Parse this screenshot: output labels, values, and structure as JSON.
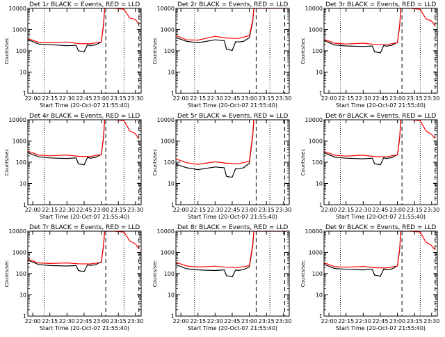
{
  "figure": {
    "rows": 3,
    "cols": 3,
    "ylabel": "Counts/sec",
    "xlabel": "Start Time (20-Oct-07 21:55:40)"
  },
  "chart_data": [
    {
      "type": "line",
      "title": "Det 1r BLACK = Events, RED = LLD",
      "xlabel": "Start Time (20-Oct-07 21:55:40)",
      "ylabel": "Counts/sec",
      "yscale": "log",
      "ylim": [
        1,
        10000
      ],
      "xlim": [
        "21:55:40",
        "23:35:00"
      ],
      "xticks": [
        "22:00",
        "22:15",
        "22:30",
        "22:45",
        "23:00",
        "23:15",
        "23:30"
      ],
      "yticks": [
        "1",
        "10",
        "100",
        "1000",
        "10000"
      ],
      "markers": [
        {
          "time": "22:10",
          "style": "dotted"
        },
        {
          "time": "23:04",
          "style": "dashed"
        },
        {
          "time": "23:20",
          "style": "dotted"
        },
        {
          "time": "23:33",
          "style": "dashed"
        }
      ],
      "series": [
        {
          "name": "Events",
          "color": "#000000",
          "x": [
            "21:56",
            "22:05",
            "22:15",
            "22:30",
            "22:38",
            "22:40",
            "22:43",
            "22:45",
            "22:48",
            "22:50",
            "22:55",
            "23:00",
            "23:02",
            "23:03"
          ],
          "values": [
            330,
            210,
            195,
            175,
            180,
            100,
            95,
            90,
            195,
            175,
            190,
            260,
            1500,
            10000
          ]
        },
        {
          "name": "LLD",
          "color": "#ff0000",
          "x": [
            "21:56",
            "22:05",
            "22:15",
            "22:30",
            "22:40",
            "22:50",
            "23:00",
            "23:02",
            "23:03",
            "23:12",
            "23:20",
            "23:25",
            "23:30",
            "23:33"
          ],
          "values": [
            370,
            255,
            240,
            260,
            220,
            215,
            260,
            1700,
            10000,
            10000,
            9000,
            3500,
            3000,
            1800
          ]
        }
      ]
    },
    {
      "type": "line",
      "title": "Det 2r BLACK = Events, RED = LLD",
      "xlabel": "Start Time (20-Oct-07 21:55:40)",
      "ylabel": "Counts/sec",
      "yscale": "log",
      "ylim": [
        1,
        10000
      ],
      "xlim": [
        "21:55:40",
        "23:35:00"
      ],
      "xticks": [
        "22:00",
        "22:15",
        "22:30",
        "22:45",
        "23:00",
        "23:15",
        "23:30"
      ],
      "yticks": [
        "1",
        "10",
        "100",
        "1000",
        "10000"
      ],
      "markers": [
        {
          "time": "22:12",
          "style": "dotted"
        },
        {
          "time": "23:06",
          "style": "dashed"
        },
        {
          "time": "23:18",
          "style": "dotted"
        },
        {
          "time": "23:31",
          "style": "dashed"
        }
      ],
      "series": [
        {
          "name": "Events",
          "color": "#000000",
          "x": [
            "21:56",
            "22:05",
            "22:15",
            "22:30",
            "22:38",
            "22:40",
            "22:43",
            "22:45",
            "22:48",
            "22:50",
            "22:55",
            "23:00",
            "23:03",
            "23:04"
          ],
          "values": [
            420,
            280,
            240,
            330,
            300,
            120,
            110,
            105,
            270,
            260,
            280,
            420,
            2400,
            10000
          ]
        },
        {
          "name": "LLD",
          "color": "#ff0000",
          "x": [
            "21:56",
            "22:05",
            "22:15",
            "22:30",
            "22:40",
            "22:50",
            "23:00",
            "23:03",
            "23:04",
            "23:33"
          ],
          "values": [
            520,
            330,
            320,
            480,
            400,
            380,
            520,
            2800,
            10000,
            10000
          ]
        }
      ]
    },
    {
      "type": "line",
      "title": "Det 3r BLACK = Events, RED = LLD",
      "xlabel": "Start Time (20-Oct-07 21:55:40)",
      "ylabel": "Counts/sec",
      "yscale": "log",
      "ylim": [
        1,
        10000
      ],
      "xlim": [
        "21:55:40",
        "23:35:00"
      ],
      "xticks": [
        "22:00",
        "22:15",
        "22:30",
        "22:45",
        "23:00",
        "23:15",
        "23:30"
      ],
      "yticks": [
        "1",
        "10",
        "100",
        "1000",
        "10000"
      ],
      "markers": [
        {
          "time": "22:10",
          "style": "dotted"
        },
        {
          "time": "23:04",
          "style": "dashed"
        },
        {
          "time": "23:20",
          "style": "dotted"
        },
        {
          "time": "23:33",
          "style": "dashed"
        }
      ],
      "series": [
        {
          "name": "Events",
          "color": "#000000",
          "x": [
            "21:56",
            "22:05",
            "22:15",
            "22:30",
            "22:38",
            "22:40",
            "22:43",
            "22:45",
            "22:48",
            "22:50",
            "22:55",
            "23:00",
            "23:02",
            "23:03"
          ],
          "values": [
            300,
            190,
            170,
            160,
            170,
            90,
            85,
            80,
            180,
            165,
            180,
            250,
            1400,
            10000
          ]
        },
        {
          "name": "LLD",
          "color": "#ff0000",
          "x": [
            "21:56",
            "22:05",
            "22:15",
            "22:30",
            "22:40",
            "22:50",
            "23:00",
            "23:02",
            "23:03",
            "23:12",
            "23:20",
            "23:25",
            "23:30",
            "23:33"
          ],
          "values": [
            340,
            230,
            210,
            230,
            200,
            195,
            240,
            1600,
            10000,
            10000,
            9000,
            3200,
            2500,
            1500
          ]
        }
      ]
    },
    {
      "type": "line",
      "title": "Det 4r BLACK = Events, RED = LLD",
      "xlabel": "Start Time (20-Oct-07 21:55:40)",
      "ylabel": "Counts/sec",
      "yscale": "log",
      "ylim": [
        1,
        10000
      ],
      "xlim": [
        "21:55:40",
        "23:35:00"
      ],
      "xticks": [
        "22:00",
        "22:15",
        "22:30",
        "22:45",
        "23:00",
        "23:15",
        "23:30"
      ],
      "yticks": [
        "1",
        "10",
        "100",
        "1000",
        "10000"
      ],
      "markers": [
        {
          "time": "22:10",
          "style": "dotted"
        },
        {
          "time": "23:04",
          "style": "dashed"
        },
        {
          "time": "23:20",
          "style": "dotted"
        },
        {
          "time": "23:33",
          "style": "dashed"
        }
      ],
      "series": [
        {
          "name": "Events",
          "color": "#000000",
          "x": [
            "21:56",
            "22:05",
            "22:15",
            "22:30",
            "22:38",
            "22:40",
            "22:43",
            "22:45",
            "22:48",
            "22:50",
            "22:55",
            "23:00",
            "23:02",
            "23:03"
          ],
          "values": [
            280,
            180,
            160,
            150,
            160,
            85,
            80,
            75,
            170,
            155,
            170,
            230,
            1300,
            10000
          ]
        },
        {
          "name": "LLD",
          "color": "#ff0000",
          "x": [
            "21:56",
            "22:05",
            "22:15",
            "22:30",
            "22:40",
            "22:50",
            "23:00",
            "23:02",
            "23:03",
            "23:12",
            "23:20",
            "23:25",
            "23:30",
            "23:33"
          ],
          "values": [
            330,
            220,
            200,
            220,
            190,
            185,
            230,
            1500,
            10000,
            10000,
            9000,
            3000,
            2200,
            1200
          ]
        }
      ]
    },
    {
      "type": "line",
      "title": "Det 5r BLACK = Events, RED = LLD",
      "xlabel": "Start Time (20-Oct-07 21:55:40)",
      "ylabel": "Counts/sec",
      "yscale": "log",
      "ylim": [
        1,
        10000
      ],
      "xlim": [
        "21:55:40",
        "23:35:00"
      ],
      "xticks": [
        "22:00",
        "22:15",
        "22:30",
        "22:45",
        "23:00",
        "23:15",
        "23:30"
      ],
      "yticks": [
        "1",
        "10",
        "100",
        "1000",
        "10000"
      ],
      "markers": [
        {
          "time": "22:12",
          "style": "dotted"
        },
        {
          "time": "23:06",
          "style": "dashed"
        },
        {
          "time": "23:18",
          "style": "dotted"
        },
        {
          "time": "23:31",
          "style": "dashed"
        }
      ],
      "series": [
        {
          "name": "Events",
          "color": "#000000",
          "x": [
            "21:56",
            "22:05",
            "22:15",
            "22:30",
            "22:38",
            "22:40",
            "22:43",
            "22:45",
            "22:48",
            "22:50",
            "22:55",
            "23:00",
            "23:03",
            "23:04"
          ],
          "values": [
            80,
            55,
            45,
            60,
            55,
            22,
            20,
            20,
            50,
            48,
            55,
            90,
            1800,
            10000
          ]
        },
        {
          "name": "LLD",
          "color": "#ff0000",
          "x": [
            "21:56",
            "22:05",
            "22:15",
            "22:30",
            "22:40",
            "22:50",
            "23:00",
            "23:03",
            "23:04",
            "23:33"
          ],
          "values": [
            140,
            95,
            80,
            105,
            90,
            85,
            110,
            2200,
            10000,
            10000
          ]
        }
      ]
    },
    {
      "type": "line",
      "title": "Det 6r BLACK = Events, RED = LLD",
      "xlabel": "Start Time (20-Oct-07 21:55:40)",
      "ylabel": "Counts/sec",
      "yscale": "log",
      "ylim": [
        1,
        10000
      ],
      "xlim": [
        "21:55:40",
        "23:35:00"
      ],
      "xticks": [
        "22:00",
        "22:15",
        "22:30",
        "22:45",
        "23:00",
        "23:15",
        "23:30"
      ],
      "yticks": [
        "1",
        "10",
        "100",
        "1000",
        "10000"
      ],
      "markers": [
        {
          "time": "22:10",
          "style": "dotted"
        },
        {
          "time": "23:04",
          "style": "dashed"
        },
        {
          "time": "23:20",
          "style": "dotted"
        },
        {
          "time": "23:33",
          "style": "dashed"
        }
      ],
      "series": [
        {
          "name": "Events",
          "color": "#000000",
          "x": [
            "21:56",
            "22:05",
            "22:15",
            "22:30",
            "22:38",
            "22:40",
            "22:43",
            "22:45",
            "22:48",
            "22:50",
            "22:55",
            "23:00",
            "23:02",
            "23:03"
          ],
          "values": [
            280,
            175,
            155,
            145,
            155,
            85,
            80,
            75,
            165,
            150,
            165,
            230,
            1300,
            10000
          ]
        },
        {
          "name": "LLD",
          "color": "#ff0000",
          "x": [
            "21:56",
            "22:05",
            "22:15",
            "22:30",
            "22:40",
            "22:50",
            "23:00",
            "23:02",
            "23:03",
            "23:12",
            "23:20",
            "23:25",
            "23:30",
            "23:33"
          ],
          "values": [
            320,
            215,
            195,
            215,
            185,
            180,
            225,
            1500,
            10000,
            10000,
            9000,
            3000,
            2000,
            1300
          ]
        }
      ]
    },
    {
      "type": "line",
      "title": "Det 7r BLACK = Events, RED = LLD",
      "xlabel": "Start Time (20-Oct-07 21:55:40)",
      "ylabel": "Counts/sec",
      "yscale": "log",
      "ylim": [
        1,
        10000
      ],
      "xlim": [
        "21:55:40",
        "23:35:00"
      ],
      "xticks": [
        "22:00",
        "22:15",
        "22:30",
        "22:45",
        "23:00",
        "23:15",
        "23:30"
      ],
      "yticks": [
        "1",
        "10",
        "100",
        "1000",
        "10000"
      ],
      "markers": [
        {
          "time": "22:10",
          "style": "dotted"
        },
        {
          "time": "23:04",
          "style": "dashed"
        },
        {
          "time": "23:20",
          "style": "dotted"
        },
        {
          "time": "23:33",
          "style": "dashed"
        }
      ],
      "series": [
        {
          "name": "Events",
          "color": "#000000",
          "x": [
            "21:56",
            "22:05",
            "22:15",
            "22:30",
            "22:38",
            "22:40",
            "22:43",
            "22:45",
            "22:48",
            "22:50",
            "22:55",
            "23:00",
            "23:02",
            "23:03"
          ],
          "values": [
            420,
            270,
            240,
            230,
            240,
            140,
            130,
            125,
            260,
            245,
            260,
            360,
            1900,
            10000
          ]
        },
        {
          "name": "LLD",
          "color": "#ff0000",
          "x": [
            "21:56",
            "22:05",
            "22:15",
            "22:30",
            "22:40",
            "22:50",
            "23:00",
            "23:02",
            "23:03",
            "23:12",
            "23:20",
            "23:25",
            "23:30",
            "23:33"
          ],
          "values": [
            470,
            320,
            300,
            320,
            290,
            285,
            340,
            2100,
            10000,
            10000,
            9000,
            3500,
            2500,
            1500
          ]
        }
      ]
    },
    {
      "type": "line",
      "title": "Det 8r BLACK = Events, RED = LLD",
      "xlabel": "Start Time (20-Oct-07 21:55:40)",
      "ylabel": "Counts/sec",
      "yscale": "log",
      "ylim": [
        1,
        10000
      ],
      "xlim": [
        "21:55:40",
        "23:35:00"
      ],
      "xticks": [
        "22:00",
        "22:15",
        "22:30",
        "22:45",
        "23:00",
        "23:15",
        "23:30"
      ],
      "yticks": [
        "1",
        "10",
        "100",
        "1000",
        "10000"
      ],
      "markers": [
        {
          "time": "22:12",
          "style": "dotted"
        },
        {
          "time": "23:06",
          "style": "dashed"
        },
        {
          "time": "23:18",
          "style": "dotted"
        },
        {
          "time": "23:31",
          "style": "dashed"
        }
      ],
      "series": [
        {
          "name": "Events",
          "color": "#000000",
          "x": [
            "21:56",
            "22:05",
            "22:15",
            "22:30",
            "22:38",
            "22:40",
            "22:43",
            "22:45",
            "22:48",
            "22:50",
            "22:55",
            "23:00",
            "23:03",
            "23:04"
          ],
          "values": [
            260,
            170,
            150,
            140,
            150,
            80,
            75,
            70,
            150,
            140,
            155,
            210,
            2000,
            10000
          ]
        },
        {
          "name": "LLD",
          "color": "#ff0000",
          "x": [
            "21:56",
            "22:05",
            "22:15",
            "22:30",
            "22:40",
            "22:50",
            "23:00",
            "23:03",
            "23:04",
            "23:33"
          ],
          "values": [
            340,
            230,
            205,
            225,
            200,
            195,
            240,
            2400,
            10000,
            10000
          ]
        }
      ]
    },
    {
      "type": "line",
      "title": "Det 9r BLACK = Events, RED = LLD",
      "xlabel": "Start Time (20-Oct-07 21:55:40)",
      "ylabel": "Counts/sec",
      "yscale": "log",
      "ylim": [
        1,
        10000
      ],
      "xlim": [
        "21:55:40",
        "23:35:00"
      ],
      "xticks": [
        "22:00",
        "22:15",
        "22:30",
        "22:45",
        "23:00",
        "23:15",
        "23:30"
      ],
      "yticks": [
        "1",
        "10",
        "100",
        "1000",
        "10000"
      ],
      "markers": [
        {
          "time": "22:10",
          "style": "dotted"
        },
        {
          "time": "23:04",
          "style": "dashed"
        },
        {
          "time": "23:20",
          "style": "dotted"
        },
        {
          "time": "23:33",
          "style": "dashed"
        }
      ],
      "series": [
        {
          "name": "Events",
          "color": "#000000",
          "x": [
            "21:56",
            "22:05",
            "22:15",
            "22:30",
            "22:38",
            "22:40",
            "22:43",
            "22:45",
            "22:48",
            "22:50",
            "22:55",
            "23:00",
            "23:02",
            "23:03"
          ],
          "values": [
            270,
            175,
            160,
            150,
            160,
            85,
            80,
            75,
            165,
            150,
            165,
            230,
            1300,
            10000
          ]
        },
        {
          "name": "LLD",
          "color": "#ff0000",
          "x": [
            "21:56",
            "22:05",
            "22:15",
            "22:30",
            "22:40",
            "22:50",
            "23:00",
            "23:02",
            "23:03",
            "23:12",
            "23:20",
            "23:25",
            "23:30",
            "23:33"
          ],
          "values": [
            320,
            215,
            200,
            220,
            190,
            185,
            230,
            1500,
            10000,
            10000,
            9000,
            3000,
            2100,
            1300
          ]
        }
      ]
    }
  ]
}
